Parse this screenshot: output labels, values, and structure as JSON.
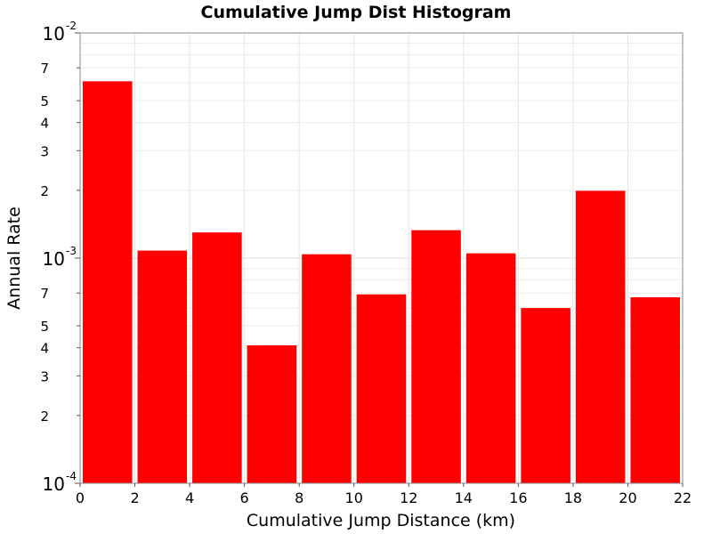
{
  "chart_data": {
    "type": "bar",
    "title": "Cumulative Jump Dist Histogram",
    "xlabel": "Cumulative Jump Distance (km)",
    "ylabel": "Annual Rate",
    "xlim": [
      0,
      22
    ],
    "ylim": [
      0.0001,
      0.01
    ],
    "yscale": "log",
    "grid": true,
    "bar_color": "#ff0000",
    "x_ticks": [
      "0",
      "2",
      "4",
      "6",
      "8",
      "10",
      "12",
      "14",
      "16",
      "18",
      "20",
      "22"
    ],
    "y_major_ticks": [
      {
        "base": "10",
        "exp": "-4",
        "value": 0.0001
      },
      {
        "base": "10",
        "exp": "-3",
        "value": 0.001
      },
      {
        "base": "10",
        "exp": "-2",
        "value": 0.01
      }
    ],
    "y_minor_labels": [
      "2",
      "3",
      "4",
      "5",
      "7"
    ],
    "bins": [
      {
        "x_start": 0,
        "x_end": 2,
        "value": 0.0061
      },
      {
        "x_start": 2,
        "x_end": 4,
        "value": 0.00108
      },
      {
        "x_start": 4,
        "x_end": 6,
        "value": 0.0013
      },
      {
        "x_start": 6,
        "x_end": 8,
        "value": 0.00041
      },
      {
        "x_start": 8,
        "x_end": 10,
        "value": 0.00104
      },
      {
        "x_start": 10,
        "x_end": 12,
        "value": 0.00069
      },
      {
        "x_start": 12,
        "x_end": 14,
        "value": 0.00133
      },
      {
        "x_start": 14,
        "x_end": 16,
        "value": 0.00105
      },
      {
        "x_start": 16,
        "x_end": 18,
        "value": 0.0006
      },
      {
        "x_start": 18,
        "x_end": 20,
        "value": 0.00199
      },
      {
        "x_start": 20,
        "x_end": 22,
        "value": 0.00067
      }
    ]
  }
}
